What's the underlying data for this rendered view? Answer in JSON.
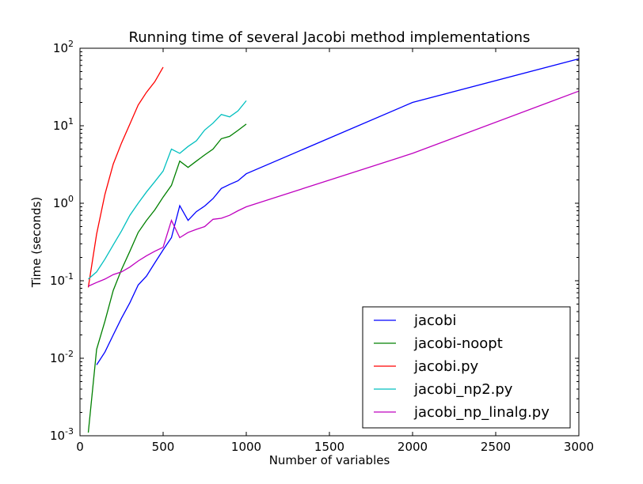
{
  "chart_data": {
    "type": "line",
    "title": "Running time of several Jacobi method implementations",
    "xlabel": "Number of variables",
    "ylabel": "Time (seconds)",
    "xlim": [
      0,
      3000
    ],
    "ylim": [
      0.001,
      100
    ],
    "yscale": "log",
    "grid": false,
    "legend_position": "lower-right",
    "x_ticks": [
      {
        "value": 0,
        "label": "0"
      },
      {
        "value": 500,
        "label": "500"
      },
      {
        "value": 1000,
        "label": "1000"
      },
      {
        "value": 1500,
        "label": "1500"
      },
      {
        "value": 2000,
        "label": "2000"
      },
      {
        "value": 2500,
        "label": "2500"
      },
      {
        "value": 3000,
        "label": "3000"
      }
    ],
    "y_ticks": [
      {
        "value": 0.001,
        "base": "10",
        "exp": "-3"
      },
      {
        "value": 0.01,
        "base": "10",
        "exp": "-2"
      },
      {
        "value": 0.1,
        "base": "10",
        "exp": "-1"
      },
      {
        "value": 1,
        "base": "10",
        "exp": "0"
      },
      {
        "value": 10,
        "base": "10",
        "exp": "1"
      },
      {
        "value": 100,
        "base": "10",
        "exp": "2"
      }
    ],
    "series": [
      {
        "name": "jacobi",
        "color": "#0000ff",
        "x": [
          100,
          150,
          200,
          250,
          300,
          350,
          400,
          450,
          500,
          550,
          600,
          650,
          700,
          750,
          800,
          850,
          900,
          950,
          1000,
          2000,
          3000
        ],
        "y": [
          0.0082,
          0.012,
          0.02,
          0.033,
          0.052,
          0.088,
          0.115,
          0.17,
          0.25,
          0.36,
          0.93,
          0.6,
          0.78,
          0.92,
          1.15,
          1.55,
          1.75,
          1.95,
          2.4,
          20,
          73
        ]
      },
      {
        "name": "jacobi-noopt",
        "color": "#008000",
        "x": [
          50,
          100,
          150,
          200,
          250,
          300,
          350,
          400,
          450,
          500,
          550,
          600,
          650,
          700,
          750,
          800,
          850,
          900,
          950,
          1000
        ],
        "y": [
          0.0011,
          0.013,
          0.03,
          0.075,
          0.14,
          0.24,
          0.42,
          0.6,
          0.82,
          1.2,
          1.7,
          3.5,
          2.9,
          3.5,
          4.2,
          5.0,
          6.8,
          7.3,
          8.7,
          10.5
        ]
      },
      {
        "name": "jacobi.py",
        "color": "#ff0000",
        "x": [
          50,
          100,
          150,
          200,
          250,
          300,
          350,
          400,
          450,
          500
        ],
        "y": [
          0.082,
          0.4,
          1.3,
          3.2,
          6.0,
          10.5,
          18.5,
          27,
          37,
          57
        ]
      },
      {
        "name": "jacobi_np2.py",
        "color": "#00bfbf",
        "x": [
          50,
          100,
          150,
          200,
          250,
          300,
          350,
          400,
          450,
          500,
          550,
          600,
          650,
          700,
          750,
          800,
          850,
          900,
          950,
          1000
        ],
        "y": [
          0.105,
          0.13,
          0.19,
          0.29,
          0.44,
          0.7,
          1.0,
          1.4,
          1.9,
          2.6,
          5.0,
          4.4,
          5.4,
          6.4,
          8.8,
          10.8,
          14,
          13,
          15.5,
          21
        ]
      },
      {
        "name": "jacobi_np_linalg.py",
        "color": "#bf00bf",
        "x": [
          50,
          100,
          150,
          200,
          250,
          300,
          350,
          400,
          450,
          500,
          550,
          600,
          650,
          700,
          750,
          800,
          850,
          900,
          950,
          1000,
          2000,
          3000
        ],
        "y": [
          0.085,
          0.095,
          0.105,
          0.12,
          0.13,
          0.15,
          0.18,
          0.21,
          0.24,
          0.27,
          0.6,
          0.36,
          0.42,
          0.46,
          0.5,
          0.62,
          0.64,
          0.7,
          0.8,
          0.9,
          4.4,
          28
        ]
      }
    ]
  }
}
